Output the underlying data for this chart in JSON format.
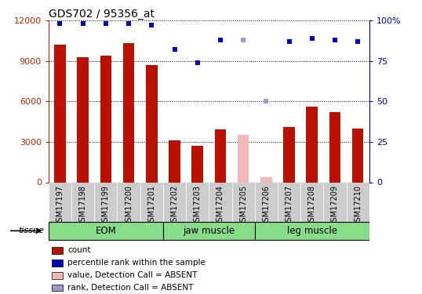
{
  "title": "GDS702 / 95356_at",
  "samples": [
    "GSM17197",
    "GSM17198",
    "GSM17199",
    "GSM17200",
    "GSM17201",
    "GSM17202",
    "GSM17203",
    "GSM17204",
    "GSM17205",
    "GSM17206",
    "GSM17207",
    "GSM17208",
    "GSM17209",
    "GSM17210"
  ],
  "bar_values": [
    10200,
    9300,
    9400,
    10300,
    8700,
    3100,
    2700,
    3900,
    null,
    null,
    4100,
    5600,
    5200,
    4000
  ],
  "bar_absent_values": [
    null,
    null,
    null,
    null,
    null,
    null,
    null,
    null,
    3500,
    350,
    null,
    null,
    null,
    null
  ],
  "bar_color_present": "#bb1100",
  "bar_color_absent": "#f2b8b8",
  "rank_values": [
    98,
    98,
    98,
    98,
    97,
    82,
    74,
    88,
    null,
    null,
    87,
    89,
    88,
    87
  ],
  "rank_absent_values": [
    null,
    null,
    null,
    null,
    null,
    null,
    null,
    null,
    88,
    50,
    null,
    null,
    null,
    null
  ],
  "rank_color_present": "#0000bb",
  "rank_color_absent": "#9999cc",
  "ylim_left": [
    0,
    12000
  ],
  "ylim_right": [
    0,
    100
  ],
  "yticks_left": [
    0,
    3000,
    6000,
    9000,
    12000
  ],
  "yticks_right": [
    0,
    25,
    50,
    75,
    100
  ],
  "left_tick_color": "#cc2200",
  "right_tick_color": "#0000bb",
  "groups": [
    {
      "label": "EOM",
      "start": 0,
      "end": 4
    },
    {
      "label": "jaw muscle",
      "start": 5,
      "end": 8
    },
    {
      "label": "leg muscle",
      "start": 9,
      "end": 13
    }
  ],
  "group_color": "#88dd88",
  "tissue_label": "tissue",
  "legend_items": [
    {
      "label": "count",
      "color": "#bb1100"
    },
    {
      "label": "percentile rank within the sample",
      "color": "#0000bb"
    },
    {
      "label": "value, Detection Call = ABSENT",
      "color": "#f2b8b8"
    },
    {
      "label": "rank, Detection Call = ABSENT",
      "color": "#9999cc"
    }
  ],
  "bg_color": "#ffffff",
  "xtick_bg": "#cccccc",
  "bar_width": 0.5
}
